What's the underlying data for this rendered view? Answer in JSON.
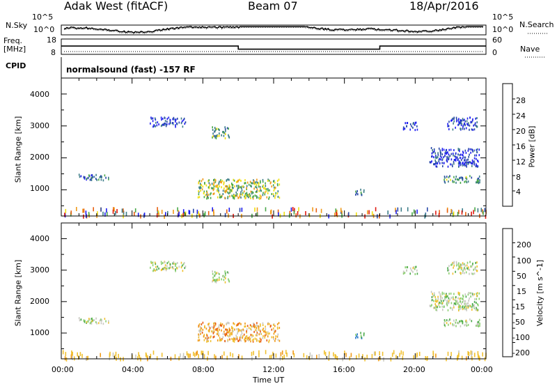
{
  "header": {
    "station": "Adak West (fitACF)",
    "beam": "Beam 07",
    "date": "18/Apr/2016"
  },
  "sky_panel": {
    "left_label": "N.Sky",
    "right_label": "N.Search",
    "left_ticks": [
      "10^5",
      "10^0"
    ],
    "right_ticks": [
      "10^5",
      "10^0"
    ]
  },
  "freq_panel": {
    "left_label_line1": "Freq.",
    "left_label_line2": "[MHz]",
    "left_ticks": [
      "18",
      "8"
    ],
    "right_label": "Nave",
    "right_ticks": [
      "60",
      "0"
    ]
  },
  "cpid": {
    "label": "CPID",
    "text": "normalsound (fast) -157 RF"
  },
  "chart_data": [
    {
      "type": "heatmap",
      "title": "Power",
      "ylabel": "Slant Range [km]",
      "yticks": [
        "1000",
        "2000",
        "3000",
        "4000"
      ],
      "ylim": [
        180,
        4500
      ],
      "xlim": [
        0,
        24
      ],
      "colorbar": {
        "label": "Power [dB]",
        "ticks": [
          "4",
          "8",
          "12",
          "16",
          "20",
          "24",
          "28"
        ],
        "range": [
          0,
          32
        ],
        "colors": [
          "#1e1ef0",
          "#2848a8",
          "#3c7c88",
          "#48a848",
          "#f0e010",
          "#f09a18",
          "#e86010",
          "#e01a10"
        ]
      },
      "regions": [
        {
          "t0": 0.9,
          "t1": 2.7,
          "r0": 1280,
          "r1": 1480,
          "level": 2
        },
        {
          "t0": 5.0,
          "t1": 7.0,
          "r0": 2950,
          "r1": 3250,
          "level": 1
        },
        {
          "t0": 8.5,
          "t1": 9.5,
          "r0": 2600,
          "r1": 2950,
          "level": 3
        },
        {
          "t0": 7.7,
          "t1": 12.3,
          "r0": 700,
          "r1": 1320,
          "level": 4
        },
        {
          "t0": 16.6,
          "t1": 17.1,
          "r0": 820,
          "r1": 1030,
          "level": 2
        },
        {
          "t0": 19.3,
          "t1": 20.1,
          "r0": 2850,
          "r1": 3100,
          "level": 1
        },
        {
          "t0": 21.6,
          "t1": 23.7,
          "r0": 1200,
          "r1": 1420,
          "level": 3
        },
        {
          "t0": 20.8,
          "t1": 23.6,
          "r0": 1700,
          "r1": 2300,
          "level": 1
        },
        {
          "t0": 21.8,
          "t1": 23.5,
          "r0": 2850,
          "r1": 3250,
          "level": 1
        },
        {
          "t0": 0.0,
          "t1": 24.0,
          "r0": 180,
          "r1": 420,
          "level": 3
        }
      ]
    },
    {
      "type": "heatmap",
      "title": "Velocity",
      "ylabel": "Slant Range [km]",
      "yticks": [
        "1000",
        "2000",
        "3000",
        "4000"
      ],
      "ylim": [
        180,
        4500
      ],
      "xlim": [
        0,
        24
      ],
      "colorbar": {
        "label": "Velocity [m s^-1]",
        "ticks": [
          "200",
          "100",
          "50",
          "15",
          "-15",
          "-50",
          "-100",
          "-200"
        ],
        "colors": [
          "#1e3ca8",
          "#2878c8",
          "#48a848",
          "#8cd070",
          "#c8c8c0",
          "#f0c030",
          "#f09a18",
          "#e85a10",
          "#e01a10"
        ]
      },
      "regions": [
        {
          "t0": 0.9,
          "t1": 2.7,
          "r0": 1280,
          "r1": 1480,
          "level": 4
        },
        {
          "t0": 5.0,
          "t1": 7.0,
          "r0": 2950,
          "r1": 3250,
          "level": 4
        },
        {
          "t0": 8.5,
          "t1": 9.5,
          "r0": 2600,
          "r1": 2950,
          "level": 4
        },
        {
          "t0": 7.7,
          "t1": 12.3,
          "r0": 700,
          "r1": 1320,
          "level": 6
        },
        {
          "t0": 16.6,
          "t1": 17.1,
          "r0": 820,
          "r1": 1030,
          "level": 2
        },
        {
          "t0": 19.3,
          "t1": 20.1,
          "r0": 2850,
          "r1": 3100,
          "level": 4
        },
        {
          "t0": 21.6,
          "t1": 23.7,
          "r0": 1200,
          "r1": 1420,
          "level": 4
        },
        {
          "t0": 20.8,
          "t1": 23.6,
          "r0": 1700,
          "r1": 2300,
          "level": 4
        },
        {
          "t0": 21.8,
          "t1": 23.5,
          "r0": 2850,
          "r1": 3250,
          "level": 4
        },
        {
          "t0": 0.0,
          "t1": 24.0,
          "r0": 180,
          "r1": 420,
          "level": 5
        }
      ]
    }
  ],
  "freq_series": {
    "x": [
      0,
      10,
      10,
      18,
      18,
      24
    ],
    "y": [
      13.5,
      13.5,
      11,
      11,
      13.5,
      13.5
    ]
  },
  "x_axis": {
    "ticks": [
      "00:00",
      "04:00",
      "08:00",
      "12:00",
      "16:00",
      "20:00",
      "00:00"
    ],
    "label": "Time UT"
  }
}
